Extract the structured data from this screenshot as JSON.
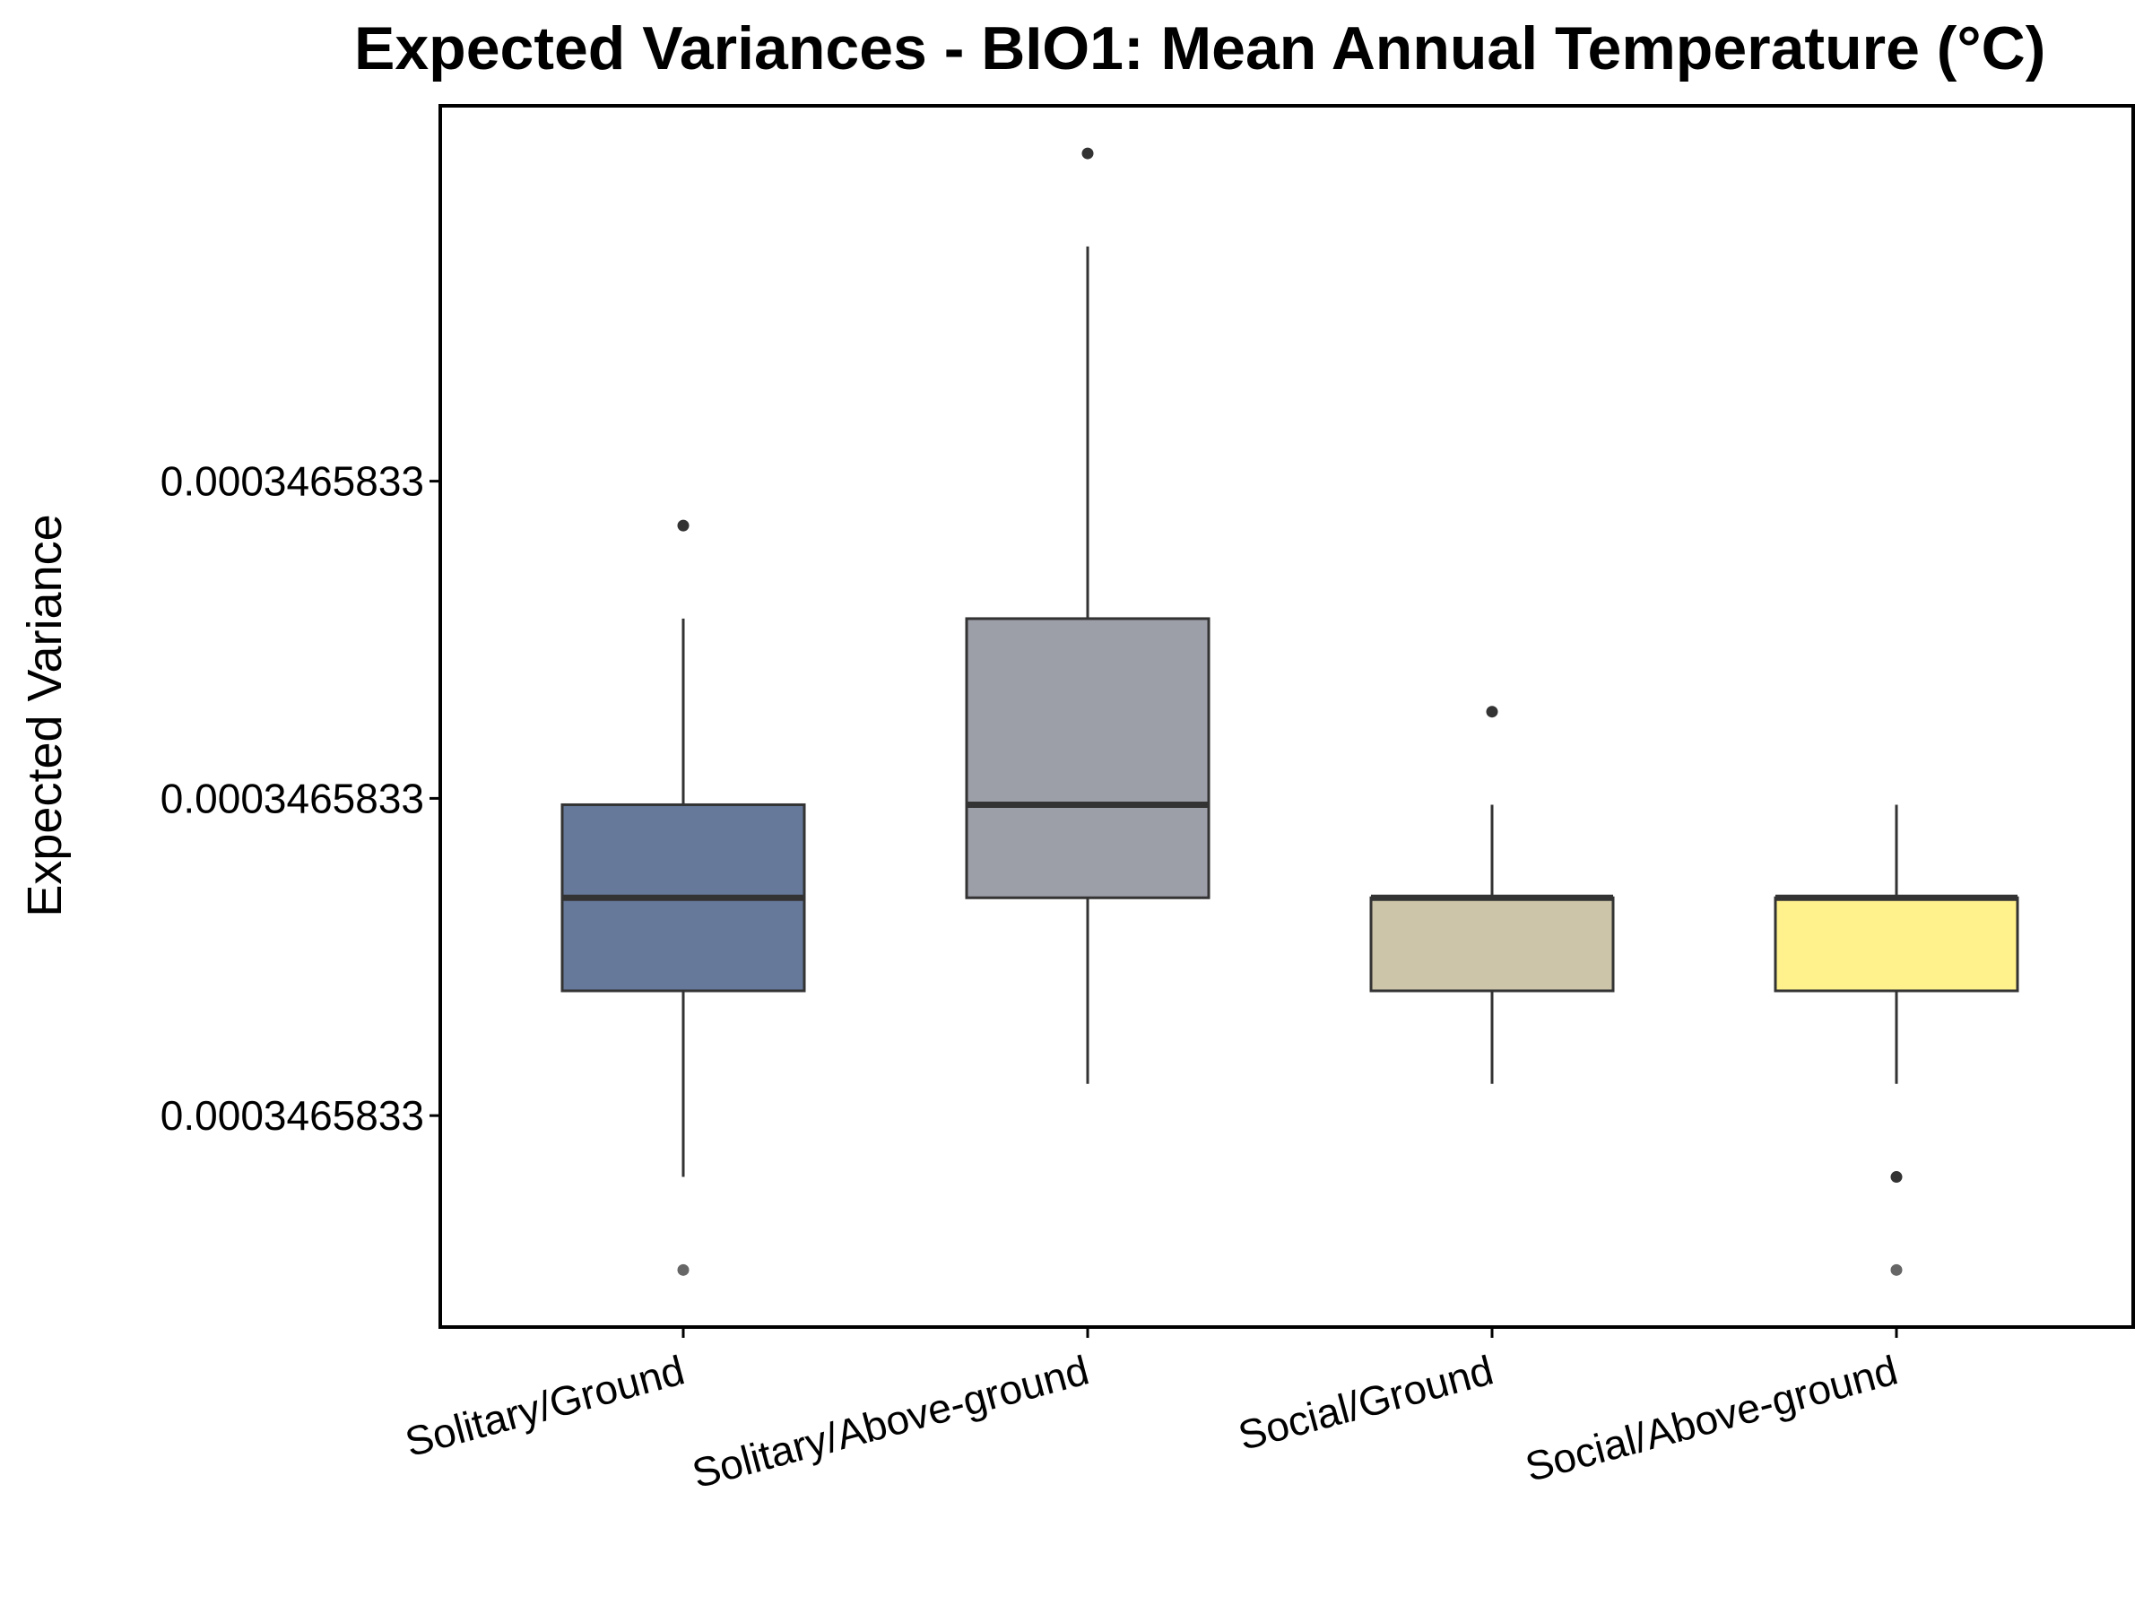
{
  "chart_data": {
    "type": "box",
    "title": "Expected Variances - BIO1: Mean Annual Temperature (°C)",
    "xlabel": "",
    "ylabel": "Expected Variance",
    "y_ticks": [
      {
        "value": 0.2,
        "label": "0.0003465833"
      },
      {
        "value": 0.5,
        "label": "0.0003465833"
      },
      {
        "value": 0.8,
        "label": "0.0003465833"
      }
    ],
    "ylim": [
      0.0,
      1.155
    ],
    "grid": false,
    "legend": "none",
    "categories": [
      "Solitary/Ground",
      "Solitary/Above-ground",
      "Social/Ground",
      "Social/Above-ground"
    ],
    "boxes": [
      {
        "category": "Solitary/Ground",
        "color": "#66799A",
        "whisker_low": 0.142,
        "q1": 0.318,
        "median": 0.406,
        "q3": 0.494,
        "whisker_high": 0.67,
        "outliers": [
          0.758,
          0.054
        ]
      },
      {
        "category": "Solitary/Above-ground",
        "color": "#9C9EA8",
        "whisker_low": 0.23,
        "q1": 0.406,
        "median": 0.494,
        "q3": 0.67,
        "whisker_high": 1.022,
        "outliers": [
          1.11
        ]
      },
      {
        "category": "Social/Ground",
        "color": "#CCC5AA",
        "whisker_low": 0.23,
        "q1": 0.318,
        "median": 0.406,
        "q3": 0.406,
        "whisker_high": 0.494,
        "outliers": [
          0.582
        ]
      },
      {
        "category": "Social/Above-ground",
        "color": "#FFF18C",
        "whisker_low": 0.23,
        "q1": 0.318,
        "median": 0.406,
        "q3": 0.406,
        "whisker_high": 0.494,
        "outliers": [
          0.142,
          0.054
        ]
      }
    ]
  }
}
